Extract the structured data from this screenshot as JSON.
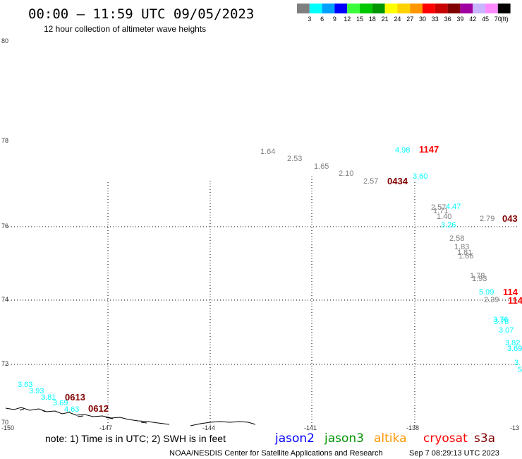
{
  "header": {
    "title": "00:00 – 11:59 UTC 09/05/2023",
    "subtitle": "12 hour collection of altimeter wave heights"
  },
  "legend": {
    "unit": "(ft)",
    "bins": [
      {
        "label": "3",
        "color": "#7f7f7f"
      },
      {
        "label": "6",
        "color": "#00ffff"
      },
      {
        "label": "9",
        "color": "#00a0ff"
      },
      {
        "label": "12",
        "color": "#0000ff"
      },
      {
        "label": "15",
        "color": "#3cff3c"
      },
      {
        "label": "18",
        "color": "#00c800"
      },
      {
        "label": "21",
        "color": "#009600"
      },
      {
        "label": "24",
        "color": "#ffff00"
      },
      {
        "label": "27",
        "color": "#ffd200"
      },
      {
        "label": "30",
        "color": "#ff9600"
      },
      {
        "label": "33",
        "color": "#ff0000"
      },
      {
        "label": "36",
        "color": "#c80000"
      },
      {
        "label": "39",
        "color": "#800000"
      },
      {
        "label": "42",
        "color": "#a000a0"
      },
      {
        "label": "45",
        "color": "#c8b4ff"
      },
      {
        "label": "70",
        "color": "#ff8cff"
      },
      {
        "label": "",
        "color": "#000000"
      }
    ]
  },
  "axes": {
    "lat_labels": [
      "80",
      "78",
      "76",
      "74",
      "72",
      "70"
    ],
    "lon_labels": [
      "-150",
      "-147",
      "-144",
      "-141",
      "-138",
      "-13"
    ]
  },
  "observations": [
    {
      "value": "1.64",
      "color": "#7f7f7f"
    },
    {
      "value": "2.53",
      "color": "#7f7f7f"
    },
    {
      "value": "1.65",
      "color": "#7f7f7f"
    },
    {
      "value": "2.10",
      "color": "#7f7f7f"
    },
    {
      "value": "2.57",
      "color": "#7f7f7f"
    },
    {
      "value": "4.98",
      "color": "#00ffff"
    },
    {
      "value": "3.60",
      "color": "#00ffff"
    },
    {
      "value": "2.57",
      "color": "#7f7f7f"
    },
    {
      "value": "1.71",
      "color": "#7f7f7f"
    },
    {
      "value": "4.47",
      "color": "#00ffff"
    },
    {
      "value": "1.40",
      "color": "#7f7f7f"
    },
    {
      "value": "3.26",
      "color": "#00ffff"
    },
    {
      "value": "2.79",
      "color": "#7f7f7f"
    },
    {
      "value": "2.58",
      "color": "#7f7f7f"
    },
    {
      "value": "1.83",
      "color": "#7f7f7f"
    },
    {
      "value": "1.81",
      "color": "#7f7f7f"
    },
    {
      "value": "1.66",
      "color": "#7f7f7f"
    },
    {
      "value": "1.78",
      "color": "#7f7f7f"
    },
    {
      "value": "1.93",
      "color": "#7f7f7f"
    },
    {
      "value": "5.99",
      "color": "#00ffff"
    },
    {
      "value": "2.39",
      "color": "#7f7f7f"
    },
    {
      "value": "3.76",
      "color": "#00ffff"
    },
    {
      "value": "3.78",
      "color": "#00ffff"
    },
    {
      "value": "3.07",
      "color": "#00ffff"
    },
    {
      "value": "3.82",
      "color": "#00ffff"
    },
    {
      "value": "3.69",
      "color": "#00ffff"
    },
    {
      "value": "3.",
      "color": "#00ffff"
    },
    {
      "value": "5",
      "color": "#00ffff"
    },
    {
      "value": "3.63",
      "color": "#00ffff"
    },
    {
      "value": "3.93",
      "color": "#00ffff"
    },
    {
      "value": "3.81",
      "color": "#00ffff"
    },
    {
      "value": "3.69",
      "color": "#00ffff"
    },
    {
      "value": "4.63",
      "color": "#00ffff"
    }
  ],
  "time_labels": [
    {
      "value": "1147",
      "color": "#ff0000"
    },
    {
      "value": "0434",
      "color": "#800000"
    },
    {
      "value": "043",
      "color": "#800000"
    },
    {
      "value": "114",
      "color": "#ff0000"
    },
    {
      "value": "114",
      "color": "#ff0000"
    },
    {
      "value": "0613",
      "color": "#800000"
    },
    {
      "value": "0612",
      "color": "#800000"
    }
  ],
  "note": "note: 1) Time is in UTC; 2) SWH is in feet",
  "satellites": [
    {
      "name": "jason2",
      "color": "#0000ff"
    },
    {
      "name": "jason3",
      "color": "#009600"
    },
    {
      "name": "altika",
      "color": "#ff9600"
    },
    {
      "name": "cryosat",
      "color": "#ff0000"
    },
    {
      "name": "s3a",
      "color": "#800000"
    }
  ],
  "footer": {
    "agency": "NOAA/NESDIS Center for Satellite Applications and Research",
    "timestamp": "Sep  7 08:29:13 UTC 2023"
  }
}
